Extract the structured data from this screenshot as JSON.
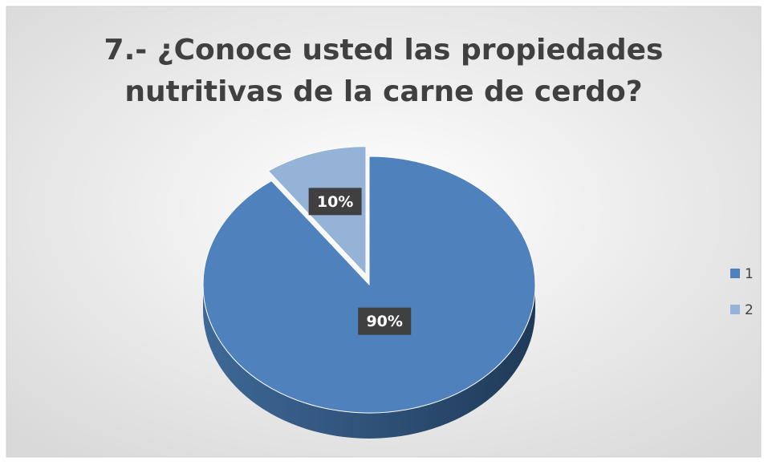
{
  "chart_data": {
    "type": "pie",
    "title": [
      "7.- ¿Conoce usted las propiedades",
      "nutritivas de la carne de cerdo?"
    ],
    "categories": [
      "1",
      "2"
    ],
    "values": [
      90,
      10
    ],
    "value_labels": [
      "90%",
      "10%"
    ],
    "colors": [
      "#4f81bd",
      "#95b3d7"
    ],
    "legend": "right",
    "explode": [
      false,
      true
    ]
  }
}
